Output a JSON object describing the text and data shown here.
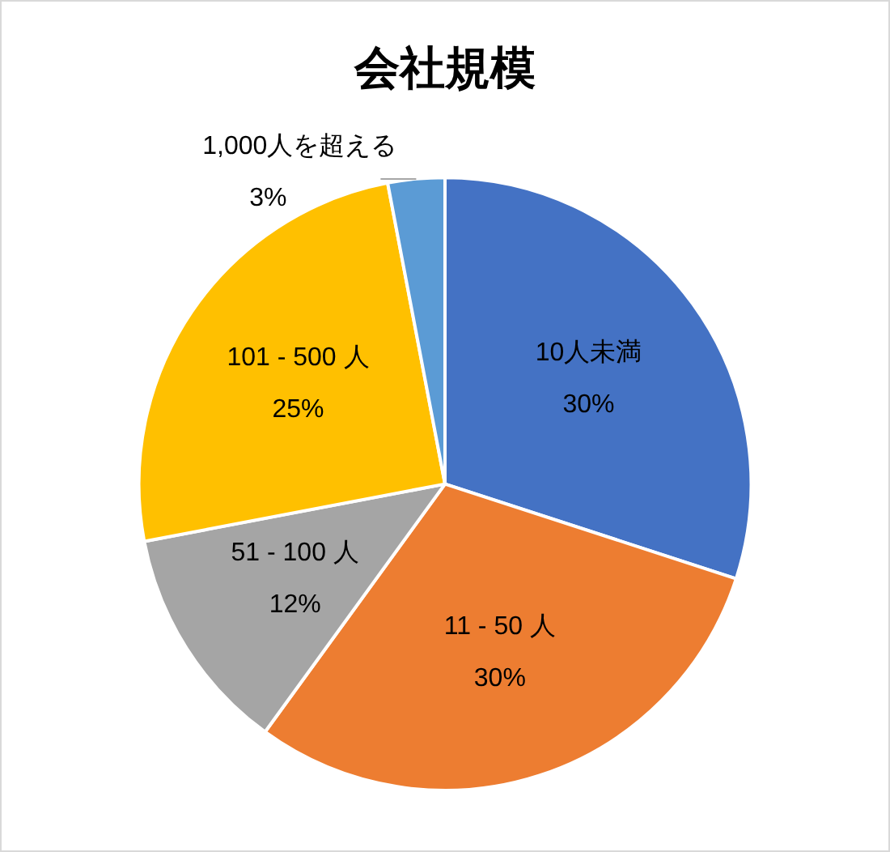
{
  "chart_data": {
    "type": "pie",
    "title": "会社規模",
    "categories": [
      "10人未満",
      "11 - 50 人",
      "51 - 100 人",
      "101 - 500 人",
      "1,000人を超える"
    ],
    "values": [
      30,
      30,
      12,
      25,
      3
    ],
    "value_labels": [
      "30%",
      "30%",
      "12%",
      "25%",
      "3%"
    ],
    "colors": [
      "#4472c4",
      "#ed7d31",
      "#a5a5a5",
      "#ffc000",
      "#5b9bd5"
    ],
    "legend": false
  }
}
